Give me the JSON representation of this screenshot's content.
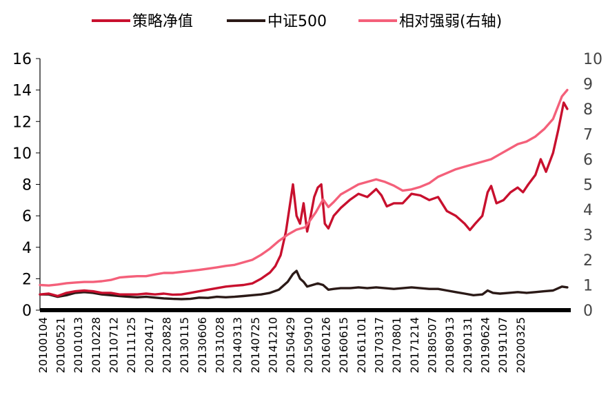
{
  "chart_data": {
    "type": "line",
    "x_tick_labels": [
      "20100104",
      "20100521",
      "20101013",
      "20110228",
      "20110712",
      "20111125",
      "20120417",
      "20120828",
      "20130115",
      "20130606",
      "20131028",
      "20140313",
      "20140725",
      "20141210",
      "20150429",
      "20150910",
      "20160126",
      "20160615",
      "20161101",
      "20170317",
      "20170801",
      "20171214",
      "20180507",
      "20180913",
      "20190131",
      "20190624",
      "20191107",
      "20200325"
    ],
    "y_left": {
      "min": 0,
      "max": 16,
      "ticks": [
        0,
        2,
        4,
        6,
        8,
        10,
        12,
        14,
        16
      ]
    },
    "y_right": {
      "min": 0,
      "max": 10,
      "ticks": [
        0,
        1,
        2,
        3,
        4,
        5,
        6,
        7,
        8,
        9,
        10
      ]
    },
    "legend": {
      "placement": "top"
    },
    "series": [
      {
        "name": "策略净值",
        "axis": "left",
        "color": "#c8102e",
        "points": [
          [
            0,
            1.0
          ],
          [
            0.5,
            1.05
          ],
          [
            1,
            0.9
          ],
          [
            1.5,
            1.1
          ],
          [
            2,
            1.2
          ],
          [
            2.5,
            1.25
          ],
          [
            3,
            1.2
          ],
          [
            3.5,
            1.1
          ],
          [
            4,
            1.1
          ],
          [
            4.5,
            1.0
          ],
          [
            5,
            1.0
          ],
          [
            5.5,
            1.0
          ],
          [
            6,
            1.05
          ],
          [
            6.5,
            1.0
          ],
          [
            7,
            1.05
          ],
          [
            7.5,
            0.98
          ],
          [
            8,
            1.0
          ],
          [
            8.5,
            1.1
          ],
          [
            9,
            1.2
          ],
          [
            9.5,
            1.3
          ],
          [
            10,
            1.4
          ],
          [
            10.5,
            1.5
          ],
          [
            11,
            1.55
          ],
          [
            11.5,
            1.6
          ],
          [
            12,
            1.7
          ],
          [
            12.5,
            2.0
          ],
          [
            13,
            2.4
          ],
          [
            13.3,
            2.8
          ],
          [
            13.6,
            3.5
          ],
          [
            13.9,
            5.0
          ],
          [
            14.1,
            6.5
          ],
          [
            14.3,
            8.0
          ],
          [
            14.5,
            6.0
          ],
          [
            14.7,
            5.5
          ],
          [
            14.9,
            6.8
          ],
          [
            15.1,
            5.0
          ],
          [
            15.3,
            6.0
          ],
          [
            15.5,
            7.2
          ],
          [
            15.7,
            7.8
          ],
          [
            15.9,
            8.0
          ],
          [
            16.1,
            5.5
          ],
          [
            16.3,
            5.2
          ],
          [
            16.6,
            6.0
          ],
          [
            17,
            6.5
          ],
          [
            17.5,
            7.0
          ],
          [
            18,
            7.4
          ],
          [
            18.5,
            7.2
          ],
          [
            19,
            7.7
          ],
          [
            19.3,
            7.3
          ],
          [
            19.6,
            6.6
          ],
          [
            20,
            6.8
          ],
          [
            20.5,
            6.8
          ],
          [
            21,
            7.4
          ],
          [
            21.5,
            7.3
          ],
          [
            22,
            7.0
          ],
          [
            22.5,
            7.2
          ],
          [
            23,
            6.3
          ],
          [
            23.5,
            6.0
          ],
          [
            24,
            5.5
          ],
          [
            24.3,
            5.1
          ],
          [
            24.6,
            5.5
          ],
          [
            25,
            6.0
          ],
          [
            25.3,
            7.5
          ],
          [
            25.5,
            7.9
          ],
          [
            25.8,
            6.8
          ],
          [
            26.2,
            7.0
          ],
          [
            26.6,
            7.5
          ],
          [
            27,
            7.8
          ],
          [
            27.3,
            7.5
          ],
          [
            27.6,
            8.0
          ],
          [
            28,
            8.6
          ],
          [
            28.3,
            9.6
          ],
          [
            28.6,
            8.8
          ],
          [
            29,
            10.0
          ],
          [
            29.3,
            11.5
          ],
          [
            29.6,
            13.2
          ],
          [
            29.8,
            12.8
          ]
        ]
      },
      {
        "name": "中证500",
        "axis": "left",
        "color": "#2b1a17",
        "points": [
          [
            0,
            1.0
          ],
          [
            0.5,
            1.0
          ],
          [
            1,
            0.85
          ],
          [
            1.5,
            0.95
          ],
          [
            2,
            1.1
          ],
          [
            2.5,
            1.15
          ],
          [
            3,
            1.1
          ],
          [
            3.5,
            1.0
          ],
          [
            4,
            0.95
          ],
          [
            4.5,
            0.9
          ],
          [
            5,
            0.85
          ],
          [
            5.5,
            0.82
          ],
          [
            6,
            0.85
          ],
          [
            6.5,
            0.8
          ],
          [
            7,
            0.75
          ],
          [
            7.5,
            0.72
          ],
          [
            8,
            0.7
          ],
          [
            8.5,
            0.72
          ],
          [
            9,
            0.8
          ],
          [
            9.5,
            0.78
          ],
          [
            10,
            0.85
          ],
          [
            10.5,
            0.82
          ],
          [
            11,
            0.85
          ],
          [
            11.5,
            0.9
          ],
          [
            12,
            0.95
          ],
          [
            12.5,
            1.0
          ],
          [
            13,
            1.1
          ],
          [
            13.5,
            1.3
          ],
          [
            14,
            1.8
          ],
          [
            14.3,
            2.3
          ],
          [
            14.5,
            2.5
          ],
          [
            14.7,
            2.0
          ],
          [
            14.9,
            1.8
          ],
          [
            15.1,
            1.5
          ],
          [
            15.4,
            1.6
          ],
          [
            15.7,
            1.7
          ],
          [
            16,
            1.6
          ],
          [
            16.3,
            1.3
          ],
          [
            16.6,
            1.35
          ],
          [
            17,
            1.4
          ],
          [
            17.5,
            1.4
          ],
          [
            18,
            1.45
          ],
          [
            18.5,
            1.4
          ],
          [
            19,
            1.45
          ],
          [
            19.5,
            1.4
          ],
          [
            20,
            1.35
          ],
          [
            20.5,
            1.4
          ],
          [
            21,
            1.45
          ],
          [
            21.5,
            1.4
          ],
          [
            22,
            1.35
          ],
          [
            22.5,
            1.35
          ],
          [
            23,
            1.25
          ],
          [
            23.5,
            1.15
          ],
          [
            24,
            1.05
          ],
          [
            24.5,
            0.95
          ],
          [
            25,
            1.0
          ],
          [
            25.3,
            1.25
          ],
          [
            25.6,
            1.1
          ],
          [
            26,
            1.05
          ],
          [
            26.5,
            1.1
          ],
          [
            27,
            1.15
          ],
          [
            27.5,
            1.1
          ],
          [
            28,
            1.15
          ],
          [
            28.5,
            1.2
          ],
          [
            29,
            1.25
          ],
          [
            29.5,
            1.5
          ],
          [
            29.8,
            1.45
          ]
        ]
      },
      {
        "name": "相对强弱(右轴)",
        "axis": "right",
        "color": "#f4607a",
        "points": [
          [
            0,
            1.0
          ],
          [
            0.5,
            0.98
          ],
          [
            1,
            1.02
          ],
          [
            1.5,
            1.07
          ],
          [
            2,
            1.1
          ],
          [
            2.5,
            1.12
          ],
          [
            3,
            1.12
          ],
          [
            3.5,
            1.15
          ],
          [
            4,
            1.2
          ],
          [
            4.5,
            1.3
          ],
          [
            5,
            1.33
          ],
          [
            5.5,
            1.35
          ],
          [
            6,
            1.35
          ],
          [
            6.5,
            1.42
          ],
          [
            7,
            1.48
          ],
          [
            7.5,
            1.48
          ],
          [
            8,
            1.52
          ],
          [
            8.5,
            1.56
          ],
          [
            9,
            1.6
          ],
          [
            9.5,
            1.65
          ],
          [
            10,
            1.7
          ],
          [
            10.5,
            1.76
          ],
          [
            11,
            1.8
          ],
          [
            11.5,
            1.9
          ],
          [
            12,
            2.0
          ],
          [
            12.5,
            2.2
          ],
          [
            13,
            2.45
          ],
          [
            13.5,
            2.75
          ],
          [
            14,
            3.0
          ],
          [
            14.5,
            3.2
          ],
          [
            15,
            3.3
          ],
          [
            15.3,
            3.6
          ],
          [
            15.6,
            3.9
          ],
          [
            16,
            4.4
          ],
          [
            16.3,
            4.1
          ],
          [
            16.6,
            4.3
          ],
          [
            17,
            4.6
          ],
          [
            17.5,
            4.8
          ],
          [
            18,
            5.0
          ],
          [
            18.5,
            5.1
          ],
          [
            19,
            5.2
          ],
          [
            19.5,
            5.1
          ],
          [
            20,
            4.95
          ],
          [
            20.5,
            4.75
          ],
          [
            21,
            4.8
          ],
          [
            21.5,
            4.9
          ],
          [
            22,
            5.05
          ],
          [
            22.5,
            5.3
          ],
          [
            23,
            5.45
          ],
          [
            23.5,
            5.6
          ],
          [
            24,
            5.7
          ],
          [
            24.5,
            5.8
          ],
          [
            25,
            5.9
          ],
          [
            25.5,
            6.0
          ],
          [
            26,
            6.2
          ],
          [
            26.5,
            6.4
          ],
          [
            27,
            6.6
          ],
          [
            27.5,
            6.7
          ],
          [
            28,
            6.9
          ],
          [
            28.5,
            7.2
          ],
          [
            29,
            7.6
          ],
          [
            29.5,
            8.5
          ],
          [
            29.8,
            8.75
          ]
        ]
      }
    ]
  }
}
